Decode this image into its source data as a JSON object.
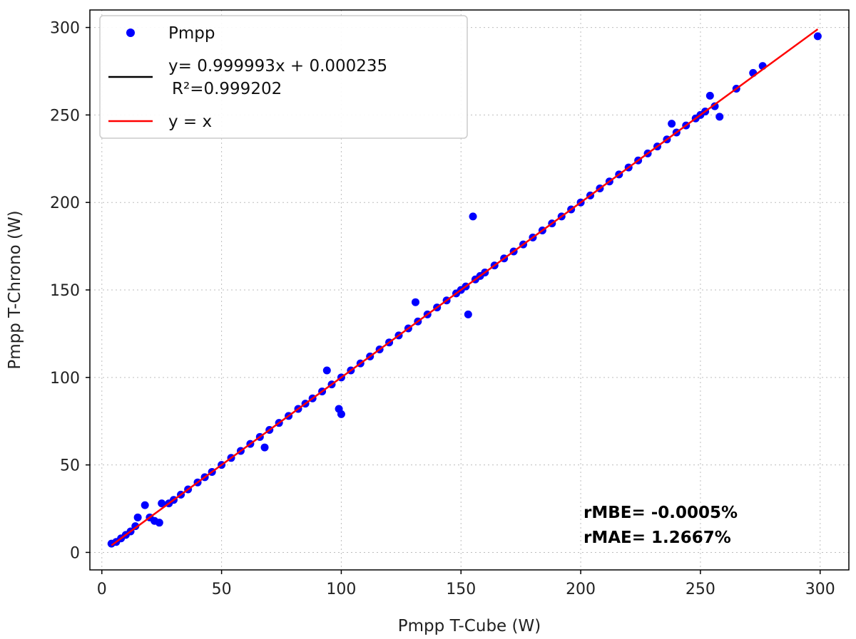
{
  "chart_data": {
    "type": "scatter",
    "xlabel": "Pmpp T-Cube (W)",
    "ylabel": "Pmpp T-Chrono (W)",
    "xlim": [
      -5,
      312
    ],
    "ylim": [
      -10,
      310
    ],
    "xticks": [
      0,
      50,
      100,
      150,
      200,
      250,
      300
    ],
    "yticks": [
      0,
      50,
      100,
      150,
      200,
      250,
      300
    ],
    "grid": true,
    "legend_position": "top-left",
    "legend": {
      "scatter_label": "Pmpp",
      "fit_label_line1": "y= 0.999993x + 0.000235",
      "fit_label_line2": "R²=0.999202",
      "identity_label": "y = x"
    },
    "fit": {
      "slope": 0.999993,
      "intercept": 0.000235
    },
    "identity_range": [
      4,
      299
    ],
    "annotations": {
      "rmbe": "rMBE= -0.0005%",
      "rmae": "rMAE= 1.2667%"
    },
    "colors": {
      "points": "#0000ff",
      "identity_line": "#ff0000",
      "fit_line": "#000000"
    },
    "series": [
      {
        "name": "Pmpp",
        "points": [
          [
            4,
            5
          ],
          [
            6,
            6
          ],
          [
            8,
            8
          ],
          [
            10,
            10
          ],
          [
            12,
            12
          ],
          [
            14,
            15
          ],
          [
            15,
            20
          ],
          [
            18,
            27
          ],
          [
            20,
            20
          ],
          [
            22,
            18
          ],
          [
            24,
            17
          ],
          [
            25,
            28
          ],
          [
            28,
            28
          ],
          [
            30,
            30
          ],
          [
            33,
            33
          ],
          [
            36,
            36
          ],
          [
            40,
            40
          ],
          [
            43,
            43
          ],
          [
            46,
            46
          ],
          [
            50,
            50
          ],
          [
            54,
            54
          ],
          [
            58,
            58
          ],
          [
            62,
            62
          ],
          [
            66,
            66
          ],
          [
            68,
            60
          ],
          [
            70,
            70
          ],
          [
            74,
            74
          ],
          [
            78,
            78
          ],
          [
            82,
            82
          ],
          [
            85,
            85
          ],
          [
            88,
            88
          ],
          [
            92,
            92
          ],
          [
            94,
            104
          ],
          [
            96,
            96
          ],
          [
            99,
            82
          ],
          [
            100,
            79
          ],
          [
            100,
            100
          ],
          [
            104,
            104
          ],
          [
            108,
            108
          ],
          [
            112,
            112
          ],
          [
            116,
            116
          ],
          [
            120,
            120
          ],
          [
            124,
            124
          ],
          [
            128,
            128
          ],
          [
            131,
            143
          ],
          [
            132,
            132
          ],
          [
            136,
            136
          ],
          [
            140,
            140
          ],
          [
            144,
            144
          ],
          [
            148,
            148
          ],
          [
            150,
            150
          ],
          [
            152,
            152
          ],
          [
            153,
            136
          ],
          [
            155,
            192
          ],
          [
            156,
            156
          ],
          [
            158,
            158
          ],
          [
            160,
            160
          ],
          [
            164,
            164
          ],
          [
            168,
            168
          ],
          [
            172,
            172
          ],
          [
            176,
            176
          ],
          [
            180,
            180
          ],
          [
            184,
            184
          ],
          [
            188,
            188
          ],
          [
            192,
            192
          ],
          [
            196,
            196
          ],
          [
            200,
            200
          ],
          [
            204,
            204
          ],
          [
            208,
            208
          ],
          [
            212,
            212
          ],
          [
            216,
            216
          ],
          [
            220,
            220
          ],
          [
            224,
            224
          ],
          [
            228,
            228
          ],
          [
            232,
            232
          ],
          [
            236,
            236
          ],
          [
            238,
            245
          ],
          [
            240,
            240
          ],
          [
            244,
            244
          ],
          [
            248,
            248
          ],
          [
            250,
            250
          ],
          [
            252,
            252
          ],
          [
            254,
            261
          ],
          [
            256,
            255
          ],
          [
            258,
            249
          ],
          [
            265,
            265
          ],
          [
            272,
            274
          ],
          [
            276,
            278
          ],
          [
            299,
            295
          ]
        ]
      }
    ]
  }
}
